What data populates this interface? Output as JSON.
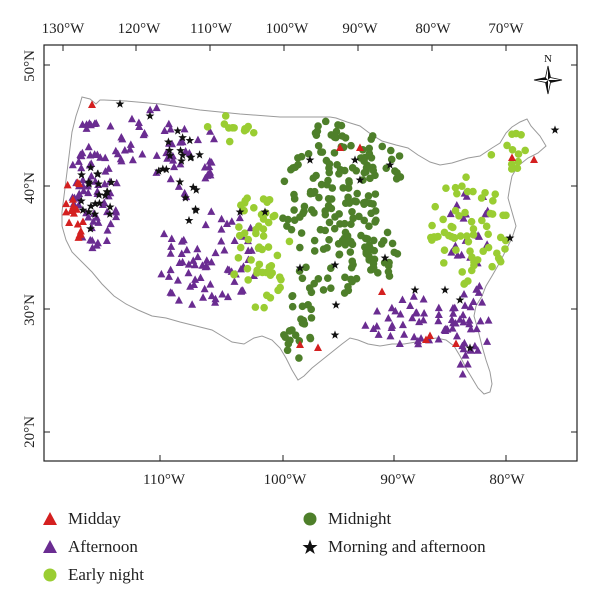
{
  "map": {
    "axes": {
      "top_lon_labels": [
        "130°W",
        "120°W",
        "110°W",
        "100°W",
        "90°W",
        "80°W",
        "70°W"
      ],
      "bottom_lon_labels": [
        "110°W",
        "100°W",
        "90°W",
        "80°W"
      ],
      "left_lat_labels": [
        "50°N",
        "40°N",
        "30°N",
        "20°N"
      ]
    },
    "compass_label": "N",
    "colors": {
      "midday": "#d42020",
      "afternoon": "#6a2c91",
      "early_night": "#9acd32",
      "midnight": "#4e7f2a",
      "morning_afternoon": "#111111",
      "outline": "#9a9a9a",
      "frame": "#222222"
    }
  },
  "legend": {
    "midday": "Midday",
    "afternoon": "Afternoon",
    "early_night": "Early night",
    "midnight": "Midnight",
    "morning_afternoon": "Morning and afternoon"
  }
}
